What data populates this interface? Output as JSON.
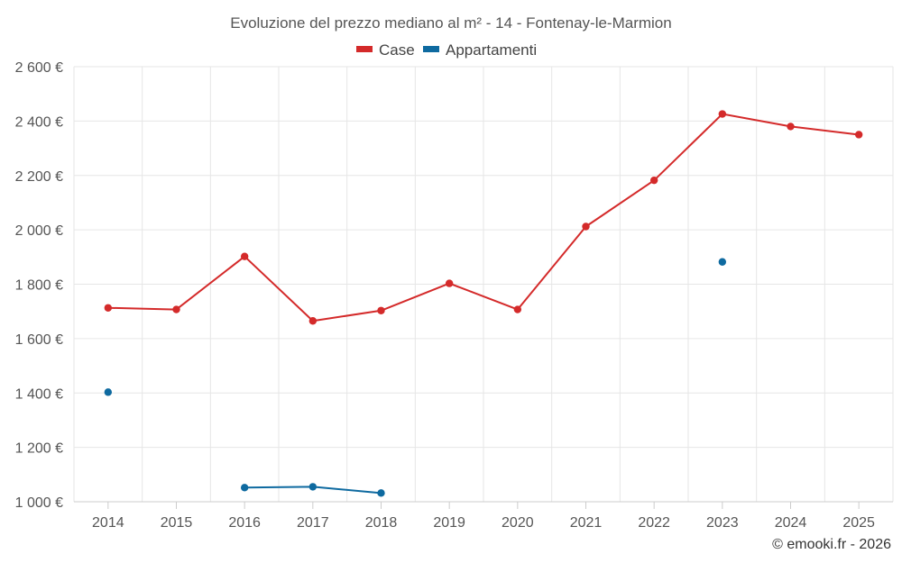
{
  "chart_data": {
    "type": "line",
    "title": "Evoluzione del prezzo mediano al m² - 14 - Fontenay-le-Marmion",
    "categories": [
      "2014",
      "2015",
      "2016",
      "2017",
      "2018",
      "2019",
      "2020",
      "2021",
      "2022",
      "2023",
      "2024",
      "2025"
    ],
    "series": [
      {
        "name": "Case",
        "color": "#d42a2a",
        "values": [
          1713,
          1707,
          1902,
          1665,
          1703,
          1803,
          1707,
          2012,
          2182,
          2426,
          2380,
          2350
        ]
      },
      {
        "name": "Appartamenti",
        "color": "#0e6aa0",
        "values": [
          1403,
          null,
          1052,
          1055,
          1032,
          null,
          null,
          null,
          null,
          1882,
          null,
          null
        ]
      }
    ],
    "ylim": [
      1000,
      2600
    ],
    "yticks": [
      1000,
      1200,
      1400,
      1600,
      1800,
      2000,
      2200,
      2400,
      2600
    ],
    "ytick_labels": [
      "1 000 €",
      "1 200 €",
      "1 400 €",
      "1 600 €",
      "1 800 €",
      "2 000 €",
      "2 200 €",
      "2 400 €",
      "2 600 €"
    ],
    "grid": true,
    "legend": "top-center"
  },
  "credit": "© emooki.fr - 2026"
}
